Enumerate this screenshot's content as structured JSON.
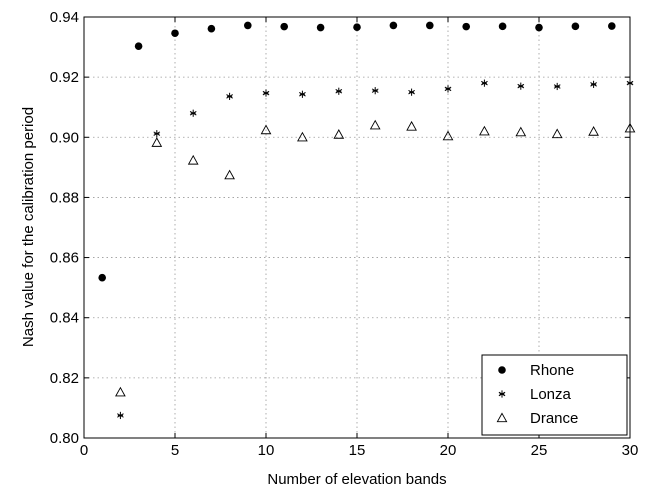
{
  "chart_data": {
    "type": "scatter",
    "title": "",
    "xlabel": "Number of elevation bands",
    "ylabel": "Nash value for the calibration period",
    "xlim": [
      0,
      30
    ],
    "ylim": [
      0.8,
      0.94
    ],
    "x_ticks": [
      0,
      5,
      10,
      15,
      20,
      25,
      30
    ],
    "x_tick_labels": [
      "0",
      "5",
      "10",
      "15",
      "20",
      "25",
      "30"
    ],
    "y_ticks": [
      0.8,
      0.82,
      0.84,
      0.86,
      0.88,
      0.9,
      0.92,
      0.94
    ],
    "y_tick_labels": [
      "0.80",
      "0.82",
      "0.84",
      "0.86",
      "0.88",
      "0.90",
      "0.92",
      "0.94"
    ],
    "grid": true,
    "legend_position": "bottom-right",
    "series": [
      {
        "name": "Rhone",
        "marker": "filled-circle",
        "x": [
          1,
          3,
          5,
          7,
          9,
          11,
          13,
          15,
          17,
          19,
          21,
          23,
          25,
          27,
          29
        ],
        "y": [
          0.8533,
          0.9303,
          0.9346,
          0.9361,
          0.9372,
          0.9368,
          0.9365,
          0.9366,
          0.9372,
          0.9372,
          0.9368,
          0.9369,
          0.9365,
          0.9369,
          0.937
        ]
      },
      {
        "name": "Lonza",
        "marker": "asterisk",
        "x": [
          2,
          4,
          6,
          8,
          10,
          12,
          14,
          16,
          18,
          20,
          22,
          24,
          26,
          28,
          30
        ],
        "y": [
          0.8075,
          0.9012,
          0.908,
          0.9136,
          0.9147,
          0.9143,
          0.9153,
          0.9155,
          0.915,
          0.9161,
          0.918,
          0.917,
          0.9169,
          0.9176,
          0.918
        ]
      },
      {
        "name": "Drance",
        "marker": "open-triangle",
        "x": [
          2,
          4,
          6,
          8,
          10,
          12,
          14,
          16,
          18,
          20,
          22,
          24,
          26,
          28,
          30
        ],
        "y": [
          0.8152,
          0.8982,
          0.8923,
          0.8874,
          0.9024,
          0.9,
          0.9009,
          0.904,
          0.9036,
          0.9004,
          0.902,
          0.9017,
          0.9011,
          0.9019,
          0.903
        ]
      }
    ]
  }
}
